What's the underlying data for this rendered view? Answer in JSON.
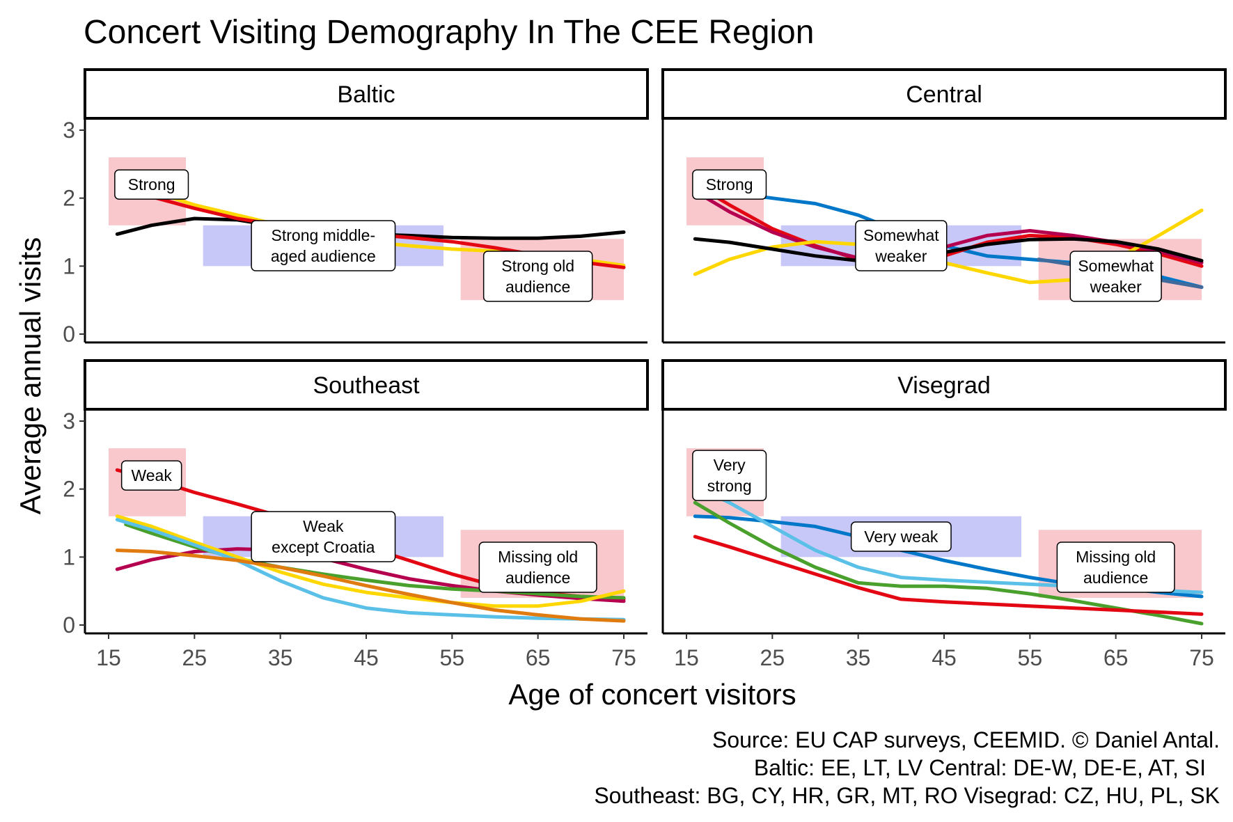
{
  "chart_data": {
    "type": "line",
    "title": "Concert Visiting Demography In The CEE Region",
    "xlabel": "Age of concert visitors",
    "ylabel": "Average annual visits",
    "xlim": [
      15,
      75
    ],
    "ylim": [
      0,
      3
    ],
    "x_ticks": [
      15,
      25,
      35,
      45,
      55,
      65,
      75
    ],
    "y_ticks": [
      0,
      1,
      2,
      3
    ],
    "grid": false,
    "legend": "none",
    "caption": [
      "Source: EU CAP surveys, CEEMID. © Daniel Antal.",
      "Baltic: EE, LT, LV  Central: DE-W, DE-E, AT, SI",
      "Southeast: BG, CY, HR, GR, MT, RO  Visegrad: CZ, HU, PL, SK"
    ],
    "panels": [
      {
        "title": "Baltic",
        "regions": [
          {
            "x": [
              15,
              24
            ],
            "y": [
              1.6,
              2.6
            ],
            "fill": "#f8c8cc"
          },
          {
            "x": [
              26,
              54
            ],
            "y": [
              1.0,
              1.6
            ],
            "fill": "#c8c8f8"
          },
          {
            "x": [
              56,
              75
            ],
            "y": [
              0.5,
              1.4
            ],
            "fill": "#f8c8cc"
          }
        ],
        "annotations": [
          {
            "x": 20,
            "y": 2.2,
            "lines": [
              "Strong"
            ]
          },
          {
            "x": 40,
            "y": 1.3,
            "lines": [
              "Strong middle-",
              "aged audience"
            ]
          },
          {
            "x": 65,
            "y": 0.85,
            "lines": [
              "Strong old",
              "audience"
            ]
          }
        ],
        "series": [
          {
            "color": "#000000",
            "x": [
              16,
              20,
              25,
              30,
              35,
              40,
              45,
              50,
              55,
              60,
              65,
              70,
              75
            ],
            "y": [
              1.47,
              1.6,
              1.7,
              1.68,
              1.58,
              1.5,
              1.47,
              1.45,
              1.42,
              1.41,
              1.41,
              1.44,
              1.5
            ]
          },
          {
            "color": "#ffd700",
            "x": [
              16,
              20,
              25,
              30,
              35,
              40,
              45,
              50,
              55,
              60,
              65,
              70,
              75
            ],
            "y": [
              2.25,
              2.1,
              1.9,
              1.75,
              1.6,
              1.45,
              1.36,
              1.3,
              1.25,
              1.22,
              1.18,
              1.1,
              1.01
            ]
          },
          {
            "color": "#e30613",
            "x": [
              16,
              20,
              25,
              30,
              35,
              40,
              45,
              50,
              55,
              60,
              65,
              70,
              75
            ],
            "y": [
              2.15,
              2.02,
              1.85,
              1.7,
              1.6,
              1.52,
              1.47,
              1.42,
              1.36,
              1.27,
              1.16,
              1.06,
              0.98
            ]
          }
        ]
      },
      {
        "title": "Central",
        "regions": [
          {
            "x": [
              15,
              24
            ],
            "y": [
              1.6,
              2.6
            ],
            "fill": "#f8c8cc"
          },
          {
            "x": [
              26,
              54
            ],
            "y": [
              1.0,
              1.6
            ],
            "fill": "#c8c8f8"
          },
          {
            "x": [
              56,
              75
            ],
            "y": [
              0.5,
              1.4
            ],
            "fill": "#f8c8cc"
          }
        ],
        "annotations": [
          {
            "x": 20,
            "y": 2.2,
            "lines": [
              "Strong"
            ]
          },
          {
            "x": 40,
            "y": 1.3,
            "lines": [
              "Somewhat",
              "weaker"
            ]
          },
          {
            "x": 65,
            "y": 0.85,
            "lines": [
              "Somewhat",
              "weaker"
            ]
          }
        ],
        "series": [
          {
            "color": "#0077c8",
            "x": [
              16,
              20,
              25,
              30,
              35,
              40,
              45,
              50,
              55,
              60,
              65,
              70,
              75
            ],
            "y": [
              2.15,
              2.08,
              2.0,
              1.92,
              1.75,
              1.5,
              1.3,
              1.15,
              1.1,
              1.05,
              1.0,
              0.85,
              0.69
            ]
          },
          {
            "color": "#e30613",
            "x": [
              16,
              20,
              25,
              30,
              35,
              40,
              45,
              50,
              55,
              60,
              65,
              70,
              75
            ],
            "y": [
              2.2,
              1.9,
              1.55,
              1.3,
              1.1,
              1.05,
              1.15,
              1.35,
              1.45,
              1.42,
              1.32,
              1.18,
              1.0
            ]
          },
          {
            "color": "#b5004f",
            "x": [
              16,
              20,
              25,
              30,
              35,
              40,
              45,
              50,
              55,
              60,
              65,
              70,
              75
            ],
            "y": [
              2.1,
              1.8,
              1.5,
              1.28,
              1.12,
              1.15,
              1.28,
              1.45,
              1.52,
              1.45,
              1.35,
              1.22,
              1.05
            ]
          },
          {
            "color": "#ffd700",
            "x": [
              16,
              20,
              25,
              30,
              35,
              40,
              45,
              50,
              55,
              60,
              65,
              70,
              75
            ],
            "y": [
              0.88,
              1.1,
              1.28,
              1.36,
              1.32,
              1.2,
              1.05,
              0.9,
              0.76,
              0.8,
              1.1,
              1.45,
              1.82
            ]
          },
          {
            "color": "#000000",
            "x": [
              16,
              20,
              25,
              30,
              35,
              40,
              45,
              50,
              55,
              60,
              65,
              70,
              75
            ],
            "y": [
              1.4,
              1.35,
              1.25,
              1.15,
              1.08,
              1.1,
              1.2,
              1.32,
              1.39,
              1.4,
              1.36,
              1.25,
              1.08
            ]
          },
          {
            "color": "#3f6a9b",
            "x": [
              56,
              60,
              65,
              70,
              75
            ],
            "y": [
              1.1,
              1.02,
              0.92,
              0.8,
              0.69
            ]
          }
        ]
      },
      {
        "title": "Southeast",
        "regions": [
          {
            "x": [
              15,
              24
            ],
            "y": [
              1.6,
              2.6
            ],
            "fill": "#f8c8cc"
          },
          {
            "x": [
              26,
              54
            ],
            "y": [
              1.0,
              1.6
            ],
            "fill": "#c8c8f8"
          },
          {
            "x": [
              56,
              75
            ],
            "y": [
              0.4,
              1.4
            ],
            "fill": "#f8c8cc"
          }
        ],
        "annotations": [
          {
            "x": 20,
            "y": 2.2,
            "lines": [
              "Weak"
            ]
          },
          {
            "x": 40,
            "y": 1.3,
            "lines": [
              "Weak",
              "except Croatia"
            ]
          },
          {
            "x": 65,
            "y": 0.85,
            "lines": [
              "Missing old",
              "audience"
            ]
          }
        ],
        "series": [
          {
            "color": "#e30613",
            "x": [
              16,
              20,
              25,
              30,
              35,
              40,
              45,
              50,
              55,
              60,
              65,
              70,
              75
            ],
            "y": [
              2.28,
              2.15,
              1.95,
              1.78,
              1.6,
              1.4,
              1.15,
              0.95,
              0.75,
              0.58,
              0.48,
              0.42,
              0.38
            ]
          },
          {
            "color": "#b5004f",
            "x": [
              16,
              20,
              25,
              30,
              35,
              40,
              45,
              50,
              55,
              60,
              65,
              70,
              75
            ],
            "y": [
              0.82,
              0.96,
              1.08,
              1.12,
              1.1,
              0.98,
              0.82,
              0.68,
              0.58,
              0.5,
              0.44,
              0.39,
              0.35
            ]
          },
          {
            "color": "#4aa02c",
            "x": [
              17,
              20,
              25,
              30,
              35,
              40,
              45,
              50,
              55,
              60,
              65,
              70,
              75
            ],
            "y": [
              1.48,
              1.35,
              1.15,
              0.98,
              0.85,
              0.75,
              0.66,
              0.58,
              0.53,
              0.5,
              0.46,
              0.42,
              0.4
            ]
          },
          {
            "color": "#ffd700",
            "x": [
              16,
              20,
              25,
              30,
              35,
              40,
              45,
              50,
              55,
              60,
              65,
              70,
              75
            ],
            "y": [
              1.6,
              1.45,
              1.22,
              1.0,
              0.78,
              0.6,
              0.48,
              0.4,
              0.33,
              0.28,
              0.28,
              0.35,
              0.5
            ]
          },
          {
            "color": "#5bc0e8",
            "x": [
              16,
              20,
              25,
              30,
              35,
              40,
              45,
              50,
              55,
              60,
              65,
              70,
              75
            ],
            "y": [
              1.55,
              1.4,
              1.18,
              0.95,
              0.65,
              0.4,
              0.25,
              0.18,
              0.15,
              0.12,
              0.1,
              0.09,
              0.08
            ]
          },
          {
            "color": "#e07b10",
            "x": [
              16,
              20,
              25,
              30,
              35,
              40,
              45,
              50,
              55,
              60,
              65,
              70,
              75
            ],
            "y": [
              1.1,
              1.08,
              1.02,
              0.95,
              0.85,
              0.72,
              0.58,
              0.45,
              0.33,
              0.22,
              0.15,
              0.09,
              0.06
            ]
          }
        ]
      },
      {
        "title": "Visegrad",
        "regions": [
          {
            "x": [
              15,
              24
            ],
            "y": [
              1.6,
              2.6
            ],
            "fill": "#f8c8cc"
          },
          {
            "x": [
              26,
              54
            ],
            "y": [
              1.0,
              1.6
            ],
            "fill": "#c8c8f8"
          },
          {
            "x": [
              56,
              75
            ],
            "y": [
              0.4,
              1.4
            ],
            "fill": "#f8c8cc"
          }
        ],
        "annotations": [
          {
            "x": 20,
            "y": 2.2,
            "lines": [
              "Very",
              "strong"
            ]
          },
          {
            "x": 40,
            "y": 1.3,
            "lines": [
              "Very weak"
            ]
          },
          {
            "x": 65,
            "y": 0.85,
            "lines": [
              "Missing old",
              "audience"
            ]
          }
        ],
        "series": [
          {
            "color": "#0077c8",
            "x": [
              16,
              20,
              25,
              30,
              35,
              40,
              45,
              50,
              55,
              60,
              65,
              70,
              75
            ],
            "y": [
              1.6,
              1.58,
              1.52,
              1.45,
              1.3,
              1.1,
              0.95,
              0.82,
              0.7,
              0.6,
              0.55,
              0.48,
              0.42
            ]
          },
          {
            "color": "#5bc0e8",
            "x": [
              16,
              20,
              25,
              30,
              35,
              40,
              45,
              50,
              55,
              60,
              65,
              70,
              75
            ],
            "y": [
              2.05,
              1.8,
              1.45,
              1.1,
              0.85,
              0.7,
              0.66,
              0.63,
              0.6,
              0.57,
              0.54,
              0.51,
              0.48
            ]
          },
          {
            "color": "#4aa02c",
            "x": [
              16,
              20,
              25,
              30,
              35,
              40,
              45,
              50,
              55,
              60,
              65,
              70,
              75
            ],
            "y": [
              1.8,
              1.5,
              1.15,
              0.85,
              0.62,
              0.57,
              0.57,
              0.54,
              0.46,
              0.36,
              0.25,
              0.14,
              0.02
            ]
          },
          {
            "color": "#e30613",
            "x": [
              16,
              20,
              25,
              30,
              35,
              40,
              45,
              50,
              55,
              60,
              65,
              70,
              75
            ],
            "y": [
              1.3,
              1.15,
              0.95,
              0.75,
              0.55,
              0.38,
              0.34,
              0.31,
              0.28,
              0.25,
              0.22,
              0.19,
              0.16
            ]
          }
        ]
      }
    ]
  }
}
